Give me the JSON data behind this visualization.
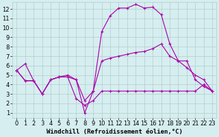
{
  "background_color": "#d6eef0",
  "grid_color": "#b0cccc",
  "line_color": "#aa00aa",
  "xlabel": "Windchill (Refroidissement éolien,°C)",
  "xlabel_fontsize": 6.5,
  "tick_fontsize": 6.0,
  "xlim": [
    -0.5,
    23.5
  ],
  "ylim": [
    0.5,
    12.7
  ],
  "xticks": [
    0,
    1,
    2,
    3,
    4,
    5,
    6,
    7,
    8,
    9,
    10,
    11,
    12,
    13,
    14,
    15,
    16,
    17,
    18,
    19,
    20,
    21,
    22,
    23
  ],
  "yticks": [
    1,
    2,
    3,
    4,
    5,
    6,
    7,
    8,
    9,
    10,
    11,
    12
  ],
  "line1_x": [
    0,
    1,
    2,
    3,
    4,
    5,
    6,
    7,
    8,
    9,
    10,
    11,
    12,
    13,
    14,
    15,
    16,
    17,
    18,
    19,
    20,
    21,
    22,
    23
  ],
  "line1_y": [
    5.5,
    6.2,
    4.4,
    3.0,
    4.5,
    4.8,
    4.8,
    2.5,
    1.8,
    2.3,
    3.3,
    3.3,
    3.3,
    3.3,
    3.3,
    3.3,
    3.3,
    3.3,
    3.3,
    3.3,
    3.3,
    3.3,
    4.0,
    3.3
  ],
  "line2_x": [
    0,
    1,
    2,
    3,
    4,
    5,
    6,
    7,
    8,
    9,
    10,
    11,
    12,
    13,
    14,
    15,
    16,
    17,
    18,
    19,
    20,
    21,
    22,
    23
  ],
  "line2_y": [
    5.5,
    4.4,
    4.4,
    3.0,
    4.5,
    4.8,
    4.8,
    4.5,
    1.0,
    3.3,
    9.6,
    11.3,
    12.1,
    12.1,
    12.5,
    12.1,
    12.2,
    11.4,
    8.3,
    6.5,
    6.5,
    4.5,
    3.8,
    3.3
  ],
  "line3_x": [
    0,
    1,
    2,
    3,
    4,
    5,
    6,
    7,
    8,
    9,
    10,
    11,
    12,
    13,
    14,
    15,
    16,
    17,
    18,
    19,
    20,
    21,
    22,
    23
  ],
  "line3_y": [
    5.5,
    4.4,
    4.4,
    3.0,
    4.5,
    4.8,
    5.0,
    4.5,
    2.3,
    3.3,
    6.5,
    6.8,
    7.0,
    7.2,
    7.4,
    7.5,
    7.8,
    8.3,
    7.0,
    6.5,
    5.8,
    5.0,
    4.5,
    3.3
  ]
}
